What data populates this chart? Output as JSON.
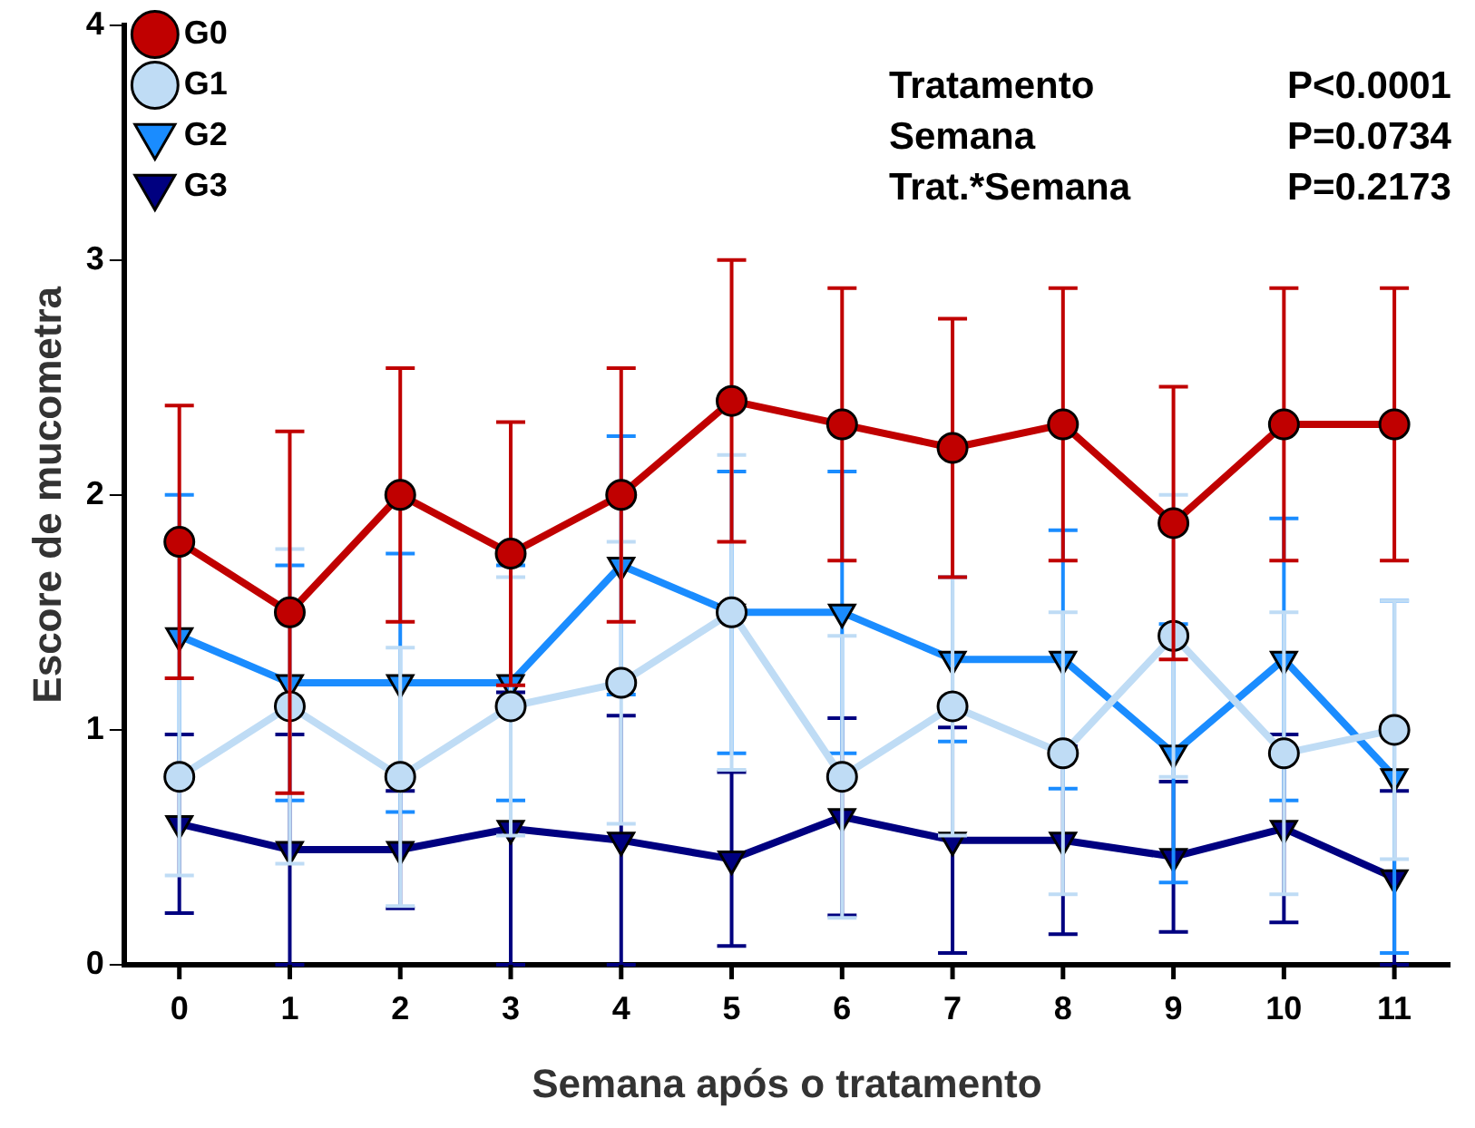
{
  "chart_data": {
    "type": "line",
    "xlabel": "Semana após o tratamento",
    "ylabel": "Escore de mucometra",
    "categories": [
      "0",
      "1",
      "2",
      "3",
      "4",
      "5",
      "6",
      "7",
      "8",
      "9",
      "10",
      "11"
    ],
    "ylim": [
      0,
      4
    ],
    "yticks": [
      0,
      1,
      2,
      3,
      4
    ],
    "grid": false,
    "legend": "top left",
    "annotations": [
      "Tratamento",
      "P<0.0001",
      "Semana",
      "P=0.0734",
      "Trat.*Semana",
      "P=0.2173"
    ],
    "series": [
      {
        "name": "G0",
        "color": "#c00000",
        "marker": "circle",
        "values": [
          1.8,
          1.5,
          2.0,
          1.75,
          2.0,
          2.4,
          2.3,
          2.2,
          2.3,
          1.88,
          2.3,
          2.3
        ],
        "errors": [
          0.58,
          0.77,
          0.54,
          0.56,
          0.54,
          0.6,
          0.58,
          0.55,
          0.58,
          0.58,
          0.58,
          0.58
        ]
      },
      {
        "name": "G1",
        "color": "#bfdcf5",
        "marker": "circle",
        "values": [
          0.8,
          1.1,
          0.8,
          1.1,
          1.2,
          1.5,
          0.8,
          1.1,
          0.9,
          1.4,
          0.9,
          1.0
        ],
        "errors": [
          0.42,
          0.67,
          0.55,
          0.55,
          0.6,
          0.67,
          0.6,
          0.55,
          0.6,
          0.6,
          0.6,
          0.55
        ]
      },
      {
        "name": "G2",
        "color": "#1a8cff",
        "marker": "triangle",
        "values": [
          1.4,
          1.2,
          1.2,
          1.2,
          1.7,
          1.5,
          1.5,
          1.3,
          1.3,
          0.9,
          1.3,
          0.8
        ],
        "errors": [
          0.6,
          0.5,
          0.55,
          0.5,
          0.55,
          0.6,
          0.6,
          0.35,
          0.55,
          0.55,
          0.6,
          0.75
        ]
      },
      {
        "name": "G3",
        "color": "#000080",
        "marker": "triangle",
        "values": [
          0.6,
          0.49,
          0.49,
          0.58,
          0.53,
          0.45,
          0.63,
          0.53,
          0.53,
          0.46,
          0.58,
          0.37
        ],
        "errors": [
          0.38,
          0.49,
          0.25,
          0.58,
          0.53,
          0.37,
          0.42,
          0.48,
          0.4,
          0.32,
          0.4,
          0.37
        ]
      }
    ]
  }
}
